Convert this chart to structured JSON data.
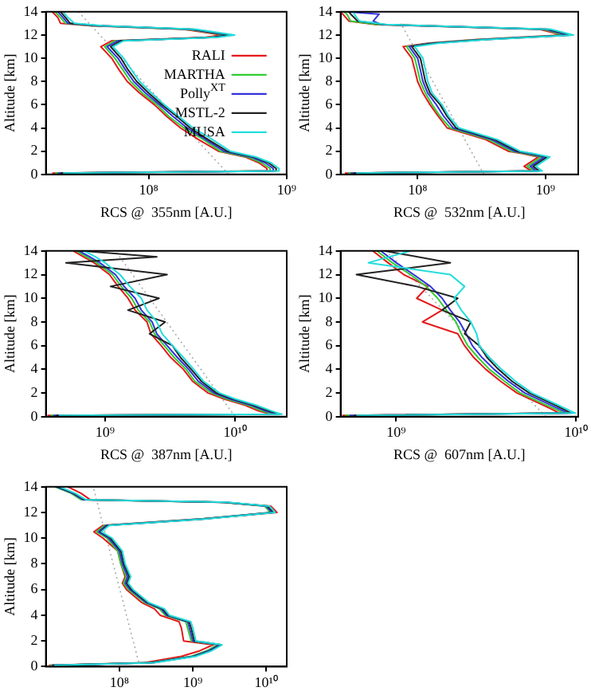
{
  "chart_data": [
    {
      "type": "line",
      "xlabel": "RCS @  355nm [A.U.]",
      "ylabel": "Altitude [km]",
      "log": "x",
      "grid": false,
      "legend": "right",
      "xlim": [
        18000000.0,
        1000000000.0
      ],
      "xticks": [
        {
          "value": 100000000.0,
          "label": "10⁸"
        },
        {
          "value": 1000000000.0,
          "label": "10⁹"
        }
      ],
      "ylim": [
        0,
        14
      ],
      "yticks": [
        0,
        2,
        4,
        6,
        8,
        10,
        12,
        14
      ],
      "series": [
        {
          "color": "#aaaaaa",
          "line_style": "dotted",
          "x": [
            380000000.0,
            31000000.0
          ],
          "values": [
            0,
            14
          ]
        },
        {
          "name": "RALI",
          "color": "#e41a1c",
          "x": [
            20000000.0,
            720000000.0,
            720000000.0,
            630000000.0,
            500000000.0,
            320000000.0,
            230000000.0,
            170000000.0,
            135000000.0,
            110000000.0,
            86000000.0,
            70000000.0,
            61000000.0,
            54000000.0,
            45000000.0,
            54000000.0,
            260000000.0,
            340000000.0,
            180000000.0,
            38000000.0,
            23000000.0,
            22000000.0,
            20000000.0
          ],
          "values": [
            0.1,
            0.3,
            0.5,
            1,
            1.5,
            2,
            3,
            4,
            5,
            6,
            7,
            8,
            9,
            10,
            11,
            11.5,
            11.8,
            12,
            12.5,
            12.8,
            13,
            13.5,
            14
          ]
        },
        {
          "name": "MARTHA",
          "color": "#33cc33",
          "x": [
            21000000.0,
            760000000.0,
            760000000.0,
            660000000.0,
            520000000.0,
            330000000.0,
            250000000.0,
            180000000.0,
            140000000.0,
            115000000.0,
            90000000.0,
            74000000.0,
            65000000.0,
            57000000.0,
            48000000.0,
            57000000.0,
            280000000.0,
            360000000.0,
            190000000.0,
            40000000.0,
            25000000.0,
            23000000.0,
            21000000.0
          ],
          "values": [
            0.1,
            0.3,
            0.5,
            1,
            1.5,
            2,
            3,
            4,
            5,
            6,
            7,
            8,
            9,
            10,
            11,
            11.5,
            11.8,
            12,
            12.5,
            12.8,
            13,
            13.5,
            14
          ]
        },
        {
          "name": "Polly$^{XT}$",
          "color": "#3333dd",
          "x": [
            22000000.0,
            800000000.0,
            800000000.0,
            700000000.0,
            550000000.0,
            350000000.0,
            260000000.0,
            190000000.0,
            150000000.0,
            120000000.0,
            95000000.0,
            78000000.0,
            68000000.0,
            60000000.0,
            50000000.0,
            60000000.0,
            290000000.0,
            380000000.0,
            200000000.0,
            42000000.0,
            26000000.0,
            24000000.0,
            22000000.0
          ],
          "values": [
            0.1,
            0.3,
            0.5,
            1,
            1.5,
            2,
            3,
            4,
            5,
            6,
            7,
            8,
            9,
            10,
            11,
            11.5,
            11.8,
            12,
            12.5,
            12.8,
            13,
            13.5,
            14
          ]
        },
        {
          "name": "MSTL-2",
          "color": "#222222",
          "x": [
            23000000.0,
            840000000.0,
            840000000.0,
            740000000.0,
            580000000.0,
            370000000.0,
            270000000.0,
            200000000.0,
            160000000.0,
            125000000.0,
            100000000.0,
            82000000.0,
            71000000.0,
            63000000.0,
            53000000.0,
            63000000.0,
            300000000.0,
            400000000.0,
            210000000.0,
            44000000.0,
            27000000.0,
            25000000.0,
            23000000.0
          ],
          "values": [
            0.1,
            0.3,
            0.5,
            1,
            1.5,
            2,
            3,
            4,
            5,
            6,
            7,
            8,
            9,
            10,
            11,
            11.5,
            11.8,
            12,
            12.5,
            12.8,
            13,
            13.5,
            14
          ]
        },
        {
          "name": "MUSA",
          "color": "#22dddd",
          "x": [
            24000000.0,
            880000000.0,
            880000000.0,
            770000000.0,
            600000000.0,
            390000000.0,
            290000000.0,
            210000000.0,
            165000000.0,
            130000000.0,
            105000000.0,
            86000000.0,
            75000000.0,
            66000000.0,
            55000000.0,
            66000000.0,
            320000000.0,
            420000000.0,
            220000000.0,
            46000000.0,
            29000000.0,
            26000000.0,
            24000000.0
          ],
          "values": [
            0.1,
            0.3,
            0.5,
            1,
            1.5,
            2,
            3,
            4,
            5,
            6,
            7,
            8,
            9,
            10,
            11,
            11.5,
            11.8,
            12,
            12.5,
            12.8,
            13,
            13.5,
            14
          ]
        }
      ]
    },
    {
      "type": "line",
      "xlabel": "RCS @  532nm [A.U.]",
      "ylabel": "Altitude [km]",
      "log": "x",
      "grid": false,
      "xlim": [
        25000000.0,
        1800000000.0
      ],
      "xticks": [
        {
          "value": 100000000.0,
          "label": "10⁸"
        },
        {
          "value": 1000000000.0,
          "label": "10⁹"
        }
      ],
      "ylim": [
        0,
        14
      ],
      "yticks": [
        0,
        2,
        4,
        6,
        8,
        10,
        12,
        14
      ],
      "series": [
        {
          "color": "#aaaaaa",
          "line_style": "dotted",
          "x": [
            330000000.0,
            74000000.0
          ],
          "values": [
            0,
            13
          ]
        },
        {
          "color": "#e41a1c",
          "x": [
            27000000.0,
            770000000.0,
            680000000.0,
            880000000.0,
            650000000.0,
            510000000.0,
            340000000.0,
            170000000.0,
            145000000.0,
            125000000.0,
            110000000.0,
            100000000.0,
            95000000.0,
            90000000.0,
            77000000.0,
            120000000.0,
            280000000.0,
            1350000000.0,
            900000000.0,
            47000000.0,
            29000000.0,
            26000000.0,
            25000000.0
          ],
          "values": [
            0.1,
            0.3,
            0.7,
            1.5,
            1.8,
            2,
            3,
            4,
            5,
            6,
            7,
            8,
            9,
            10,
            11,
            11.3,
            11.6,
            12,
            12.5,
            12.9,
            13.2,
            13.8,
            14
          ]
        },
        {
          "color": "#33cc33",
          "x": [
            28500000.0,
            810000000.0,
            720000000.0,
            930000000.0,
            680000000.0,
            540000000.0,
            360000000.0,
            180000000.0,
            150000000.0,
            130000000.0,
            115000000.0,
            105000000.0,
            100000000.0,
            95000000.0,
            82000000.0,
            125000000.0,
            290000000.0,
            1400000000.0,
            950000000.0,
            49000000.0,
            30000000.0,
            28000000.0,
            26500000.0
          ],
          "values": [
            0.1,
            0.3,
            0.7,
            1.5,
            1.8,
            2,
            3,
            4,
            5,
            6,
            7,
            8,
            9,
            10,
            11,
            11.3,
            11.6,
            12,
            12.5,
            12.9,
            13.2,
            13.8,
            14
          ]
        },
        {
          "color": "#3333dd",
          "x": [
            30000000.0,
            850000000.0,
            760000000.0,
            980000000.0,
            720000000.0,
            570000000.0,
            380000000.0,
            190000000.0,
            160000000.0,
            140000000.0,
            120000000.0,
            110000000.0,
            105000000.0,
            100000000.0,
            86000000.0,
            130000000.0,
            310000000.0,
            1500000000.0,
            1000000000.0,
            52000000.0,
            45000000.0,
            50000000.0,
            28000000.0
          ],
          "values": [
            0.1,
            0.3,
            0.7,
            1.5,
            1.8,
            2,
            3,
            4,
            5,
            6,
            7,
            8,
            9,
            10,
            11,
            11.3,
            11.6,
            12,
            12.5,
            12.9,
            13.2,
            13.8,
            14
          ]
        },
        {
          "color": "#222222",
          "x": [
            31500000.0,
            890000000.0,
            800000000.0,
            1030000000.0,
            760000000.0,
            600000000.0,
            400000000.0,
            200000000.0,
            170000000.0,
            150000000.0,
            125000000.0,
            115000000.0,
            110000000.0,
            105000000.0,
            90000000.0,
            135000000.0,
            330000000.0,
            1600000000.0,
            1050000000.0,
            55000000.0,
            34000000.0,
            30000000.0,
            29000000.0
          ],
          "values": [
            0.1,
            0.3,
            0.7,
            1.5,
            1.8,
            2,
            3,
            4,
            5,
            6,
            7,
            8,
            9,
            10,
            11,
            11.3,
            11.6,
            12,
            12.5,
            12.9,
            13.2,
            13.8,
            14
          ]
        },
        {
          "color": "#22dddd",
          "x": [
            33000000.0,
            940000000.0,
            840000000.0,
            1080000000.0,
            790000000.0,
            630000000.0,
            420000000.0,
            210000000.0,
            175000000.0,
            155000000.0,
            130000000.0,
            120000000.0,
            115000000.0,
            110000000.0,
            95000000.0,
            145000000.0,
            340000000.0,
            1650000000.0,
            1100000000.0,
            57000000.0,
            35000000.0,
            32000000.0,
            31000000.0
          ],
          "values": [
            0.1,
            0.3,
            0.7,
            1.5,
            1.8,
            2,
            3,
            4,
            5,
            6,
            7,
            8,
            9,
            10,
            11,
            11.3,
            11.6,
            12,
            12.5,
            12.9,
            13.2,
            13.8,
            14
          ]
        }
      ]
    },
    {
      "type": "line",
      "xlabel": "RCS @  387nm [A.U.]",
      "ylabel": "Altitude [km]",
      "log": "x",
      "grid": false,
      "xlim": [
        350000000.0,
        25000000000.0
      ],
      "xticks": [
        {
          "value": 1000000000.0,
          "label": "10⁹"
        },
        {
          "value": 10000000000.0,
          "label": "10¹⁰"
        }
      ],
      "ylim": [
        0,
        14
      ],
      "yticks": [
        0,
        2,
        4,
        6,
        8,
        10,
        12,
        14
      ],
      "series": [
        {
          "color": "#aaaaaa",
          "line_style": "dotted",
          "x": [
            10000000000.0,
            1200000000.0
          ],
          "values": [
            0,
            14
          ]
        },
        {
          "color": "#e41a1c",
          "x": [
            360000000.0,
            19000000000.0,
            15000000000.0,
            11700000000.0,
            8200000000.0,
            6200000000.0,
            4700000000.0,
            4000000000.0,
            3200000000.0,
            2700000000.0,
            2250000000.0,
            2100000000.0,
            1700000000.0,
            1500000000.0,
            1260000000.0,
            1080000000.0,
            820000000.0,
            680000000.0,
            570000000.0
          ],
          "values": [
            0.1,
            0.2,
            0.5,
            1,
            1.5,
            2,
            3,
            4,
            5,
            6,
            7,
            8,
            9,
            10,
            11,
            12,
            13,
            13.5,
            14
          ]
        },
        {
          "color": "#33cc33",
          "x": [
            380000000.0,
            20000000000.0,
            16000000000.0,
            12400000000.0,
            8600000000.0,
            6600000000.0,
            4900000000.0,
            4200000000.0,
            3400000000.0,
            2850000000.0,
            2400000000.0,
            2200000000.0,
            1800000000.0,
            1600000000.0,
            1330000000.0,
            1140000000.0,
            860000000.0,
            720000000.0,
            600000000.0
          ],
          "values": [
            0.1,
            0.2,
            0.5,
            1,
            1.5,
            2,
            3,
            4,
            5,
            6,
            7,
            8,
            9,
            10,
            11,
            12,
            13,
            13.5,
            14
          ]
        },
        {
          "color": "#3333dd",
          "x": [
            400000000.0,
            21000000000.0,
            17000000000.0,
            13000000000.0,
            9100000000.0,
            6900000000.0,
            5200000000.0,
            4400000000.0,
            3600000000.0,
            3000000000.0,
            2500000000.0,
            2300000000.0,
            1900000000.0,
            1700000000.0,
            1400000000.0,
            1200000000.0,
            910000000.0,
            760000000.0,
            630000000.0
          ],
          "values": [
            0.1,
            0.2,
            0.5,
            1,
            1.5,
            2,
            3,
            4,
            5,
            6,
            7,
            8,
            9,
            10,
            11,
            12,
            13,
            13.5,
            14
          ]
        },
        {
          "color": "#222222",
          "x": [
            420000000.0,
            22000000000.0,
            18000000000.0,
            13700000000.0,
            9600000000.0,
            7200000000.0,
            5500000000.0,
            4600000000.0,
            3800000000.0,
            3300000000.0,
            2200000000.0,
            2900000000.0,
            1500000000.0,
            2600000000.0,
            1100000000.0,
            3000000000.0,
            500000000.0,
            2500000000.0,
            660000000.0
          ],
          "values": [
            0.1,
            0.2,
            0.5,
            1,
            1.5,
            2,
            3,
            4,
            5,
            6,
            7,
            8,
            9,
            10,
            11,
            12,
            13,
            13.5,
            14
          ]
        },
        {
          "color": "#22dddd",
          "x": [
            440000000.0,
            23000000000.0,
            19000000000.0,
            14300000000.0,
            10000000000.0,
            7600000000.0,
            5700000000.0,
            4800000000.0,
            4000000000.0,
            3300000000.0,
            2750000000.0,
            2500000000.0,
            2100000000.0,
            1900000000.0,
            1550000000.0,
            1300000000.0,
            1000000000.0,
            840000000.0,
            690000000.0
          ],
          "values": [
            0.1,
            0.2,
            0.5,
            1,
            1.5,
            2,
            3,
            4,
            5,
            6,
            7,
            8,
            9,
            10,
            11,
            12,
            13,
            13.5,
            14
          ]
        }
      ]
    },
    {
      "type": "line",
      "xlabel": "RCS @  607nm [A.U.]",
      "ylabel": "Altitude [km]",
      "log": "x",
      "grid": false,
      "xlim": [
        490000000.0,
        10300000000.0
      ],
      "xticks": [
        {
          "value": 1000000000.0,
          "label": "10⁹"
        },
        {
          "value": 10000000000.0,
          "label": "10¹⁰"
        }
      ],
      "ylim": [
        0,
        14
      ],
      "yticks": [
        0,
        2,
        4,
        6,
        8,
        10,
        12,
        14
      ],
      "series": [
        {
          "color": "#aaaaaa",
          "line_style": "dotted",
          "x": [
            6800000000.0,
            880000000.0
          ],
          "values": [
            0,
            14
          ]
        },
        {
          "color": "#e41a1c",
          "x": [
            500000000.0,
            8100000000.0,
            7400000000.0,
            6500000000.0,
            4700000000.0,
            3800000000.0,
            3150000000.0,
            2700000000.0,
            2400000000.0,
            2200000000.0,
            1400000000.0,
            1800000000.0,
            1300000000.0,
            1500000000.0,
            1100000000.0,
            900000000.0,
            740000000.0
          ],
          "values": [
            0.1,
            0.3,
            0.6,
            1,
            2,
            3,
            4,
            5,
            6,
            7,
            8,
            9,
            10,
            11,
            12,
            13,
            14
          ]
        },
        {
          "color": "#33cc33",
          "x": [
            520000000.0,
            8600000000.0,
            7800000000.0,
            6800000000.0,
            4900000000.0,
            4000000000.0,
            3300000000.0,
            2850000000.0,
            2500000000.0,
            2300000000.0,
            2150000000.0,
            1900000000.0,
            1700000000.0,
            1470000000.0,
            1200000000.0,
            950000000.0,
            780000000.0
          ],
          "values": [
            0.1,
            0.3,
            0.6,
            1,
            2,
            3,
            4,
            5,
            6,
            7,
            8,
            9,
            10,
            11,
            12,
            13,
            14
          ]
        },
        {
          "color": "#3333dd",
          "x": [
            550000000.0,
            9000000000.0,
            8200000000.0,
            7200000000.0,
            5200000000.0,
            4200000000.0,
            3500000000.0,
            3000000000.0,
            2650000000.0,
            2450000000.0,
            2250000000.0,
            2000000000.0,
            1800000000.0,
            1550000000.0,
            1250000000.0,
            1000000000.0,
            820000000.0
          ],
          "values": [
            0.1,
            0.3,
            0.6,
            1,
            2,
            3,
            4,
            5,
            6,
            7,
            8,
            9,
            10,
            11,
            12,
            13,
            14
          ]
        },
        {
          "color": "#222222",
          "x": [
            580000000.0,
            9400000000.0,
            8600000000.0,
            7600000000.0,
            5500000000.0,
            4400000000.0,
            3700000000.0,
            3200000000.0,
            2900000000.0,
            2400000000.0,
            2600000000.0,
            1800000000.0,
            2200000000.0,
            1300000000.0,
            600000000.0,
            2000000000.0,
            860000000.0
          ],
          "values": [
            0.1,
            0.3,
            0.6,
            1,
            2,
            3,
            4,
            5,
            6,
            7,
            8,
            9,
            10,
            11,
            12,
            13,
            14
          ]
        },
        {
          "color": "#22dddd",
          "x": [
            600000000.0,
            9900000000.0,
            9000000000.0,
            7900000000.0,
            5700000000.0,
            4600000000.0,
            3850000000.0,
            3300000000.0,
            2900000000.0,
            2800000000.0,
            2600000000.0,
            2300000000.0,
            2100000000.0,
            2400000000.0,
            2000000000.0,
            700000000.0,
            1200000000.0
          ],
          "values": [
            0.1,
            0.3,
            0.6,
            1,
            2,
            3,
            4,
            5,
            6,
            7,
            8,
            9,
            10,
            11,
            12,
            13,
            14
          ]
        }
      ]
    },
    {
      "type": "line",
      "ylabel": "Altitude [km]",
      "log": "x",
      "grid": false,
      "xlim": [
        10000000.0,
        19000000000.0
      ],
      "xticks": [
        {
          "value": 100000000.0,
          "label": "10⁸"
        },
        {
          "value": 1000000000.0,
          "label": "10⁹"
        },
        {
          "value": 10000000000.0,
          "label": "10¹⁰"
        }
      ],
      "ylim": [
        0,
        14
      ],
      "yticks": [
        0,
        2,
        4,
        6,
        8,
        10,
        12,
        14
      ],
      "series": [
        {
          "color": "#aaaaaa",
          "line_style": "dotted",
          "x": [
            190000000.0,
            44000000.0
          ],
          "values": [
            0,
            14
          ]
        },
        {
          "color": "#e41a1c",
          "x": [
            11000000.0,
            220000000.0,
            700000000.0,
            1200000000.0,
            1900000000.0,
            750000000.0,
            700000000.0,
            650000000.0,
            360000000.0,
            300000000.0,
            200000000.0,
            125000000.0,
            110000000.0,
            120000000.0,
            105000000.0,
            95000000.0,
            60000000.0,
            45000000.0,
            60000000.0,
            1300000000.0,
            14000000000.0,
            11500000000.0,
            2500000000.0,
            40000000.0,
            30000000.0,
            20000000.0
          ],
          "values": [
            0.1,
            0.3,
            0.8,
            1.2,
            1.7,
            2,
            3,
            3.5,
            4,
            4.5,
            5,
            6,
            6.5,
            7,
            8,
            9,
            10,
            10.5,
            11,
            11.5,
            12,
            12.5,
            12.8,
            13,
            13.5,
            14
          ]
        },
        {
          "color": "#33cc33",
          "x": [
            11500000.0,
            255000000.0,
            950000000.0,
            1500000000.0,
            2200000000.0,
            950000000.0,
            850000000.0,
            800000000.0,
            420000000.0,
            350000000.0,
            220000000.0,
            133000000.0,
            114000000.0,
            124000000.0,
            105000000.0,
            95000000.0,
            68000000.0,
            49000000.0,
            63000000.0,
            1330000000.0,
            11400000000.0,
            9500000000.0,
            2600000000.0,
            30000000.0,
            22000000.0,
            13300000.0
          ],
          "values": [
            0.1,
            0.3,
            0.8,
            1.2,
            1.7,
            2,
            3,
            3.5,
            4,
            4.5,
            5,
            6,
            6.5,
            7,
            8,
            9,
            10,
            10.5,
            11,
            11.5,
            12,
            12.5,
            12.8,
            13,
            13.5,
            14
          ]
        },
        {
          "color": "#3333dd",
          "x": [
            12000000.0,
            270000000.0,
            1000000000.0,
            1600000000.0,
            2300000000.0,
            1000000000.0,
            900000000.0,
            850000000.0,
            440000000.0,
            370000000.0,
            230000000.0,
            140000000.0,
            120000000.0,
            130000000.0,
            110000000.0,
            100000000.0,
            72000000.0,
            52000000.0,
            66000000.0,
            1400000000.0,
            12000000000.0,
            10000000000.0,
            2700000000.0,
            32000000.0,
            23000000.0,
            14000000.0
          ],
          "values": [
            0.1,
            0.3,
            0.8,
            1.2,
            1.7,
            2,
            3,
            3.5,
            4,
            4.5,
            5,
            6,
            6.5,
            7,
            8,
            9,
            10,
            10.5,
            11,
            11.5,
            12,
            12.5,
            12.8,
            13,
            13.5,
            14
          ]
        },
        {
          "color": "#222222",
          "x": [
            12500000.0,
            285000000.0,
            1050000000.0,
            1700000000.0,
            2400000000.0,
            1050000000.0,
            950000000.0,
            890000000.0,
            460000000.0,
            390000000.0,
            240000000.0,
            147000000.0,
            126000000.0,
            137000000.0,
            115000000.0,
            105000000.0,
            76000000.0,
            55000000.0,
            69000000.0,
            1470000000.0,
            12600000000.0,
            10500000000.0,
            2800000000.0,
            34000000.0,
            24000000.0,
            14700000.0
          ],
          "values": [
            0.1,
            0.3,
            0.8,
            1.2,
            1.7,
            2,
            3,
            3.5,
            4,
            4.5,
            5,
            6,
            6.5,
            7,
            8,
            9,
            10,
            10.5,
            11,
            11.5,
            12,
            12.5,
            12.8,
            13,
            13.5,
            14
          ]
        },
        {
          "color": "#22dddd",
          "x": [
            13000000.0,
            300000000.0,
            1100000000.0,
            1750000000.0,
            2500000000.0,
            1100000000.0,
            1000000000.0,
            940000000.0,
            480000000.0,
            410000000.0,
            250000000.0,
            154000000.0,
            132000000.0,
            143000000.0,
            120000000.0,
            110000000.0,
            80000000.0,
            57000000.0,
            73000000.0,
            1540000000.0,
            13200000000.0,
            11000000000.0,
            3000000000.0,
            35000000.0,
            25000000.0,
            15400000.0
          ],
          "values": [
            0.1,
            0.3,
            0.8,
            1.2,
            1.7,
            2,
            3,
            3.5,
            4,
            4.5,
            5,
            6,
            6.5,
            7,
            8,
            9,
            10,
            10.5,
            11,
            11.5,
            12,
            12.5,
            12.8,
            13,
            13.5,
            14
          ]
        }
      ]
    }
  ]
}
